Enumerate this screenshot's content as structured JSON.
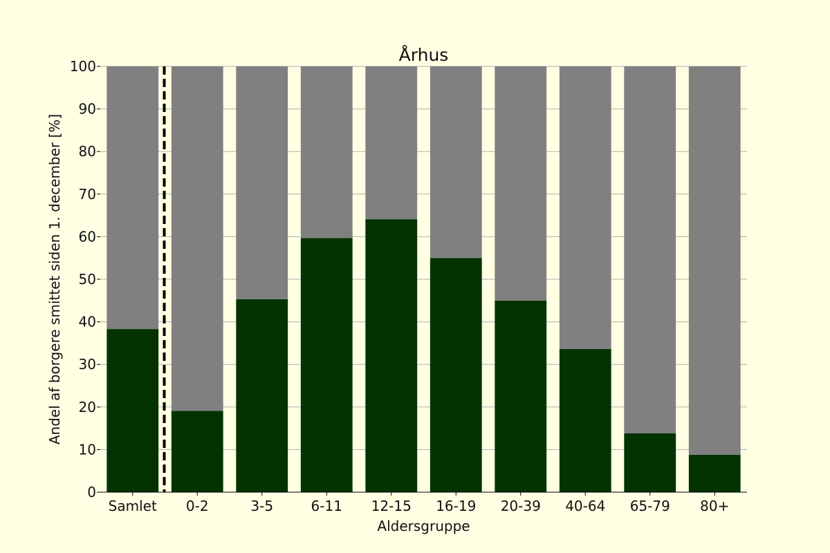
{
  "chart_data": {
    "type": "bar",
    "stacked": true,
    "title": "Århus",
    "xlabel": "Aldersgruppe",
    "ylabel": "Andel af borgere smittet siden 1. december [%]",
    "categories": [
      "Samlet",
      "0-2",
      "3-5",
      "6-11",
      "12-15",
      "16-19",
      "20-39",
      "40-64",
      "65-79",
      "80+"
    ],
    "series": [
      {
        "values": [
          38.3,
          19.1,
          45.3,
          59.7,
          64.1,
          55.0,
          45.0,
          33.6,
          13.8,
          8.8
        ],
        "color": "#023300"
      },
      {
        "values": [
          61.7,
          80.9,
          54.7,
          40.3,
          35.9,
          45.0,
          55.0,
          66.4,
          86.2,
          91.2
        ],
        "color": "#808080"
      }
    ],
    "ylim": [
      0,
      100
    ],
    "yticks": [
      0,
      10,
      20,
      30,
      40,
      50,
      60,
      70,
      80,
      90,
      100
    ],
    "grid": "y",
    "separator_after_category": "Samlet",
    "background": "#ffffe4"
  }
}
